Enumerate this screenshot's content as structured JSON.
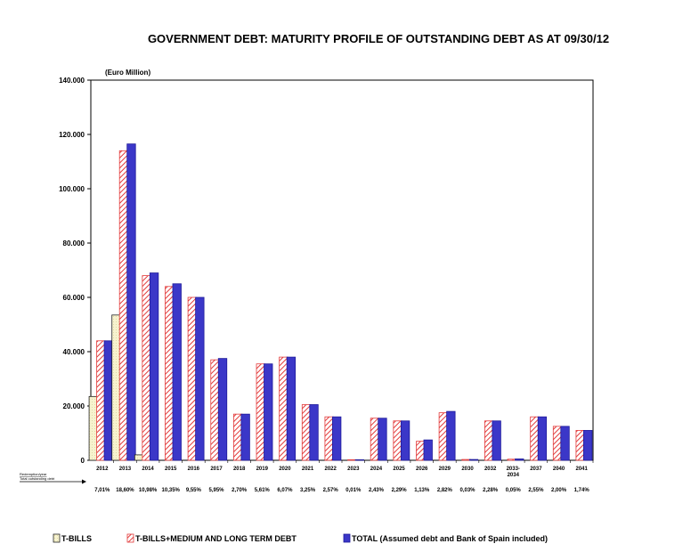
{
  "chart_data": {
    "type": "bar",
    "title": "GOVERNMENT DEBT: MATURITY PROFILE OF OUTSTANDING DEBT AS AT 09/30/12",
    "ylabel": "(Euro Million)",
    "xlabel": "",
    "ylim": [
      0,
      140000
    ],
    "yticks": [
      0,
      20000,
      40000,
      60000,
      80000,
      100000,
      120000,
      140000
    ],
    "ytick_labels": [
      "0",
      "20.000",
      "40.000",
      "60.000",
      "80.000",
      "100.000",
      "120.000",
      "140.000"
    ],
    "categories": [
      "2012",
      "2013",
      "2014",
      "2015",
      "2016",
      "2017",
      "2018",
      "2019",
      "2020",
      "2021",
      "2022",
      "2023",
      "2024",
      "2025",
      "2026",
      "2029",
      "2030",
      "2032",
      "2033-2034",
      "2037",
      "2040",
      "2041"
    ],
    "category_lines": [
      [
        "2012"
      ],
      [
        "2013"
      ],
      [
        "2014"
      ],
      [
        "2015"
      ],
      [
        "2016"
      ],
      [
        "2017"
      ],
      [
        "2018"
      ],
      [
        "2019"
      ],
      [
        "2020"
      ],
      [
        "2021"
      ],
      [
        "2022"
      ],
      [
        "2023"
      ],
      [
        "2024"
      ],
      [
        "2025"
      ],
      [
        "2026"
      ],
      [
        "2029"
      ],
      [
        "2030"
      ],
      [
        "2032"
      ],
      [
        "2033-",
        "2034"
      ],
      [
        "2037"
      ],
      [
        "2040"
      ],
      [
        "2041"
      ]
    ],
    "series": [
      {
        "name": "T-BILLS",
        "color": "#f5f0c8",
        "values": [
          23500,
          53500,
          2000,
          0,
          0,
          0,
          0,
          0,
          0,
          0,
          0,
          0,
          0,
          0,
          0,
          0,
          0,
          0,
          0,
          0,
          0,
          0
        ]
      },
      {
        "name": "T-BILLS+MEDIUM AND LONG TERM DEBT",
        "color": "#e23b3b",
        "values": [
          44000,
          114000,
          68000,
          64000,
          60000,
          37000,
          17000,
          35500,
          38000,
          20500,
          16000,
          200,
          15500,
          14500,
          7000,
          17500,
          300,
          14500,
          400,
          16000,
          12500,
          11000
        ]
      },
      {
        "name": "TOTAL (Assumed debt and Bank of Spain included)",
        "color": "#3b37c8",
        "values": [
          44000,
          116500,
          69000,
          65000,
          60000,
          37500,
          17000,
          35500,
          38000,
          20500,
          16000,
          200,
          15500,
          14500,
          7500,
          18000,
          300,
          14500,
          500,
          16000,
          12500,
          11000
        ]
      }
    ],
    "percent_of_total": [
      "7,01%",
      "18,60%",
      "10,98%",
      "10,35%",
      "9,55%",
      "5,95%",
      "2,70%",
      "5,61%",
      "6,07%",
      "3,25%",
      "2,57%",
      "0,01%",
      "2,43%",
      "2,29%",
      "1,13%",
      "2,82%",
      "0,03%",
      "2,28%",
      "0,05%",
      "2,55%",
      "2,00%",
      "1,74%"
    ],
    "row_labels": {
      "redemption": "Redemption/year",
      "total": "Total outstanding debt"
    },
    "legend": {
      "placement": "bottom"
    }
  }
}
